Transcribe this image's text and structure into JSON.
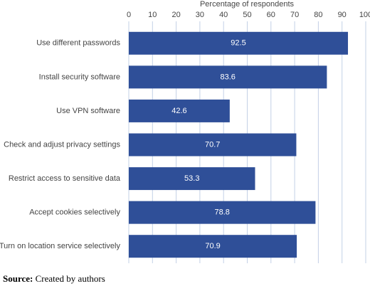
{
  "chart_data": {
    "type": "bar",
    "orientation": "horizontal",
    "x_label": "Percentage of respondents",
    "categories": [
      "Use different passwords",
      "Install security software",
      "Use VPN software",
      "Check and adjust privacy settings",
      "Restrict access to sensitive data",
      "Accept cookies selectively",
      "Turn on location service selectively"
    ],
    "values": [
      92.5,
      83.6,
      42.6,
      70.7,
      53.3,
      78.8,
      70.9
    ],
    "color": "#2f4f98",
    "xlim": [
      0,
      100
    ],
    "xticks": [
      0,
      10,
      20,
      30,
      40,
      50,
      60,
      70,
      80,
      90,
      100
    ],
    "grid": true
  },
  "source": {
    "label": "Source:",
    "text": "Created by authors"
  }
}
